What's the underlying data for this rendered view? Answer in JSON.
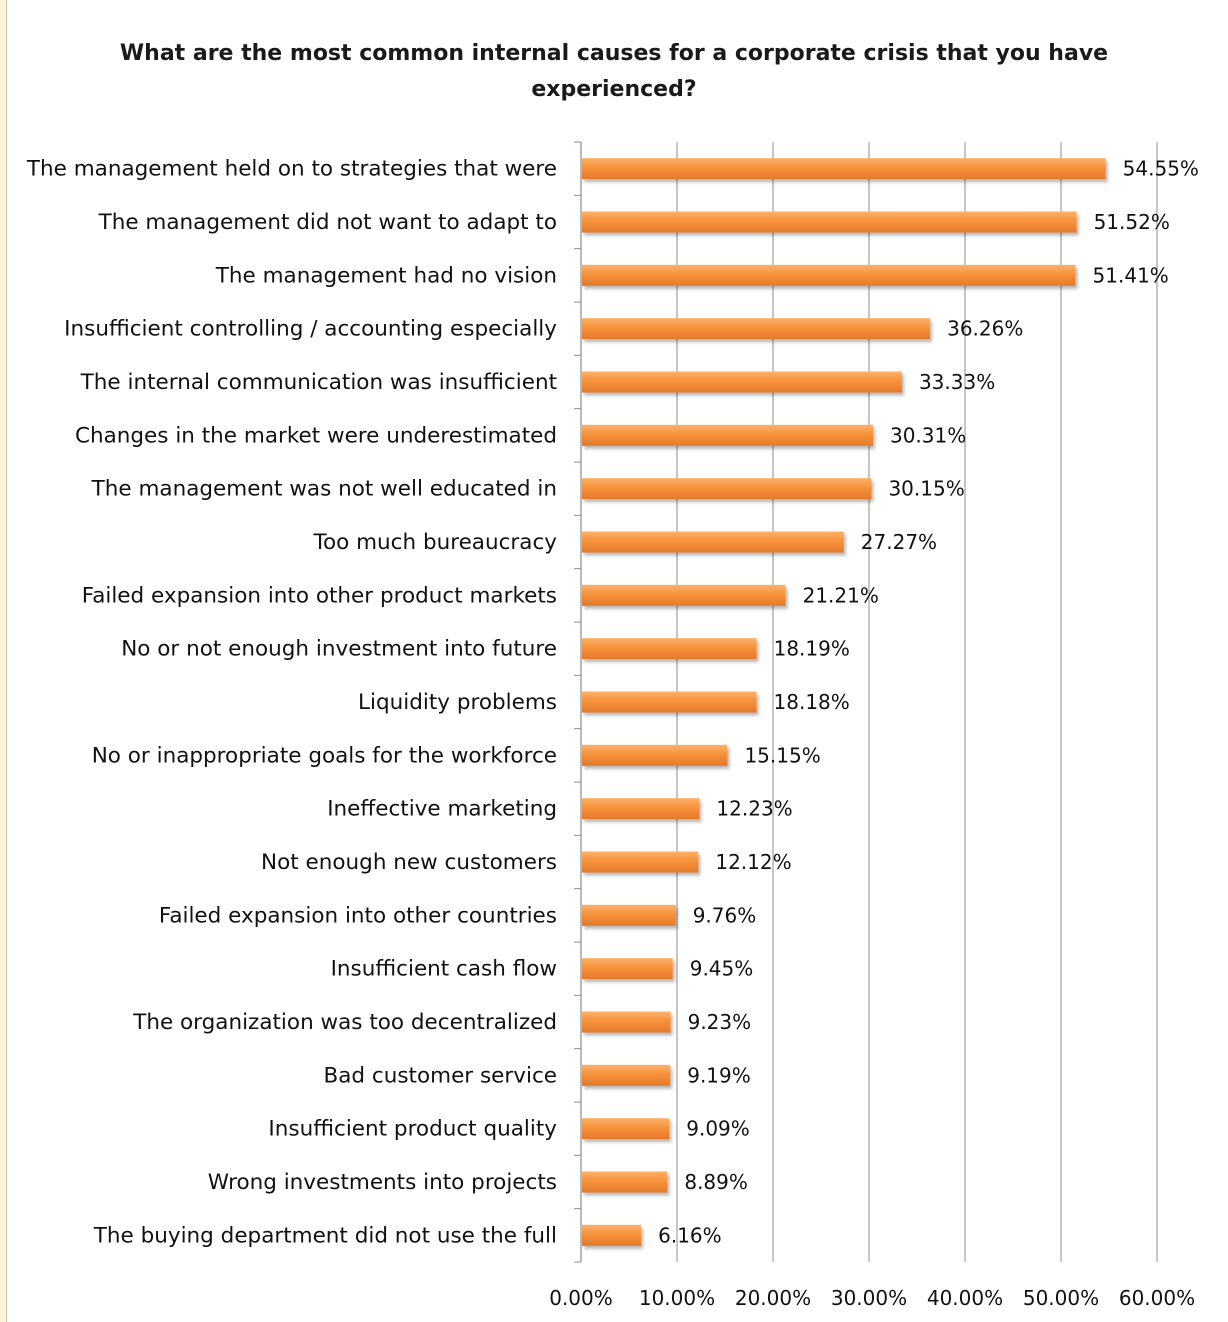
{
  "chart_data": {
    "type": "bar",
    "orientation": "horizontal",
    "title": "What are the most common internal causes for a corporate crisis that you have experienced?",
    "title_lines": [
      "What are the most common internal causes for a corporate crisis that you have",
      "experienced?"
    ],
    "categories": [
      "The management held on to strategies that were",
      "The management did not want to adapt to",
      "The management had no vision",
      "Insufficient controlling / accounting especially",
      "The internal communication was insufficient",
      "Changes in the market were underestimated",
      "The management was not well educated in",
      "Too much bureaucracy",
      "Failed expansion into other product markets",
      "No or not enough investment into future",
      "Liquidity problems",
      "No or inappropriate goals for the workforce",
      "Ineffective marketing",
      "Not enough new customers",
      "Failed expansion into other countries",
      "Insufficient cash flow",
      "The organization was too decentralized",
      "Bad customer service",
      "Insufficient product quality",
      "Wrong investments into projects",
      "The buying department did not use the full"
    ],
    "values": [
      54.55,
      51.52,
      51.41,
      36.26,
      33.33,
      30.31,
      30.15,
      27.27,
      21.21,
      18.19,
      18.18,
      15.15,
      12.23,
      12.12,
      9.76,
      9.45,
      9.23,
      9.19,
      9.09,
      8.89,
      6.16
    ],
    "value_labels": [
      "54.55%",
      "51.52%",
      "51.41%",
      "36.26%",
      "33.33%",
      "30.31%",
      "30.15%",
      "27.27%",
      "21.21%",
      "18.19%",
      "18.18%",
      "15.15%",
      "12.23%",
      "12.12%",
      "9.76%",
      "9.45%",
      "9.23%",
      "9.19%",
      "9.09%",
      "8.89%",
      "6.16%"
    ],
    "xlim": [
      0,
      60
    ],
    "xticks": [
      0,
      10,
      20,
      30,
      40,
      50,
      60
    ],
    "xtick_labels": [
      "0.00%",
      "10.00%",
      "20.00%",
      "30.00%",
      "40.00%",
      "50.00%",
      "60.00%"
    ],
    "grid": true,
    "legend": "none",
    "colors": {
      "bar_light": "#fbb26a",
      "bar": "#f6923b",
      "bar_dark": "#e5782a",
      "gridline": "#8c8c8c",
      "background": "#ffffff",
      "frame": "#fdf3d9"
    }
  }
}
